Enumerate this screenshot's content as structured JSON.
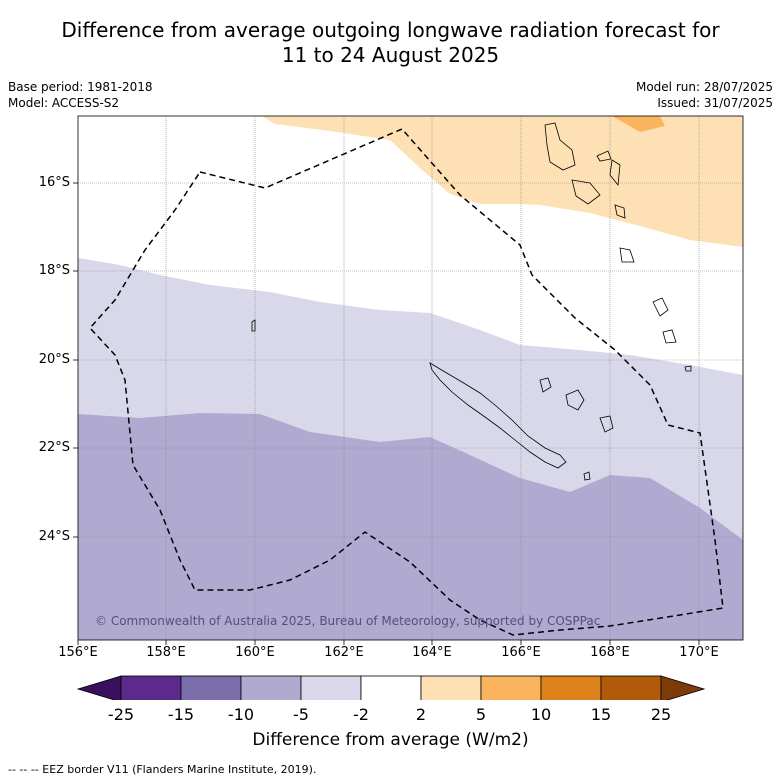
{
  "title_line1": "Difference from average outgoing longwave radiation forecast for",
  "title_line2": "11 to 24 August 2025",
  "meta_left": [
    "Base period: 1981-2018",
    "Model: ACCESS-S2"
  ],
  "meta_right": [
    "Model run: 28/07/2025",
    "Issued: 31/07/2025"
  ],
  "lat_labels": [
    "16°S",
    "18°S",
    "20°S",
    "22°S",
    "24°S"
  ],
  "lon_labels": [
    "156°E",
    "158°E",
    "160°E",
    "162°E",
    "164°E",
    "166°E",
    "168°E",
    "170°E"
  ],
  "copyright": "© Commonwealth of Australia 2025, Bureau of Meteorology, supported by COSPPac",
  "colorbar": {
    "ticks": [
      "-25",
      "-15",
      "-10",
      "-5",
      "-2",
      "2",
      "5",
      "10",
      "15",
      "25"
    ],
    "colors": [
      "#3a0f5e",
      "#5b2a8c",
      "#7b6eaa",
      "#b0aad1",
      "#d8d8ea",
      "#ffffff",
      "#fde0b4",
      "#fbb45e",
      "#e0821c",
      "#b15a09",
      "#7d3b0a"
    ],
    "title": "Difference from average (W/m2)"
  },
  "footnote": "--  --  -- EEZ border V11 (Flanders Marine Institute, 2019)."
}
